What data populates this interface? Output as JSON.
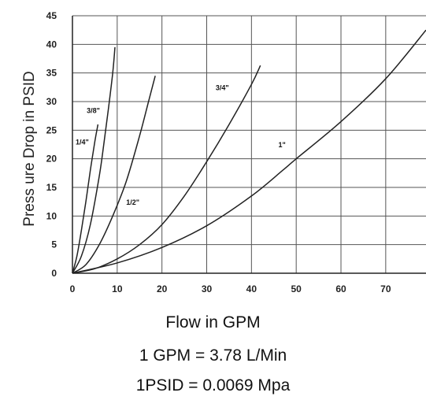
{
  "chart_data": {
    "type": "line",
    "xlabel": "Flow in GPM",
    "ylabel": "Press ure Drop in PSID",
    "xlim": [
      0,
      79
    ],
    "ylim": [
      0,
      45
    ],
    "x_ticks": [
      0,
      10,
      20,
      30,
      40,
      50,
      60,
      70
    ],
    "y_ticks": [
      0,
      5,
      10,
      15,
      20,
      25,
      30,
      35,
      40,
      45
    ],
    "grid": true,
    "series": [
      {
        "name": "1/4\"",
        "x": [
          0,
          1,
          2,
          3,
          4,
          5,
          5.7
        ],
        "y": [
          0,
          3,
          7.5,
          12.5,
          18,
          23,
          26
        ]
      },
      {
        "name": "3/8\"",
        "x": [
          0,
          2,
          4,
          6,
          7,
          8,
          9,
          9.5
        ],
        "y": [
          0,
          3,
          8.5,
          17,
          22.5,
          28.5,
          35,
          39.5
        ]
      },
      {
        "name": "1/2\"",
        "x": [
          0,
          3,
          6,
          9,
          12,
          15,
          17,
          18.5
        ],
        "y": [
          0,
          1.5,
          5,
          10,
          16,
          24,
          30,
          34.5
        ]
      },
      {
        "name": "3/4\"",
        "x": [
          0,
          5,
          10,
          15,
          20,
          25,
          30,
          35,
          40,
          42
        ],
        "y": [
          0,
          0.8,
          2.5,
          5,
          8.5,
          13.5,
          19.5,
          26,
          33,
          36.3
        ]
      },
      {
        "name": "1\"",
        "x": [
          0,
          10,
          20,
          30,
          40,
          47,
          50,
          60,
          70,
          79
        ],
        "y": [
          0,
          1.8,
          4.5,
          8.3,
          13.5,
          18,
          20,
          26.5,
          34,
          42.5
        ]
      }
    ],
    "annotations": [
      {
        "text": "1/4\"",
        "x": 0.7,
        "y": 22.5
      },
      {
        "text": "3/8\"",
        "x": 3.2,
        "y": 28
      },
      {
        "text": "1/2\"",
        "x": 12,
        "y": 12
      },
      {
        "text": "3/4\"",
        "x": 32,
        "y": 32
      },
      {
        "text": "1\"",
        "x": 46,
        "y": 22
      }
    ]
  },
  "captions": {
    "xlabel": "Flow in GPM",
    "note1": "1 GPM = 3.78 L/Min",
    "note2": "1PSID = 0.0069 Mpa"
  }
}
